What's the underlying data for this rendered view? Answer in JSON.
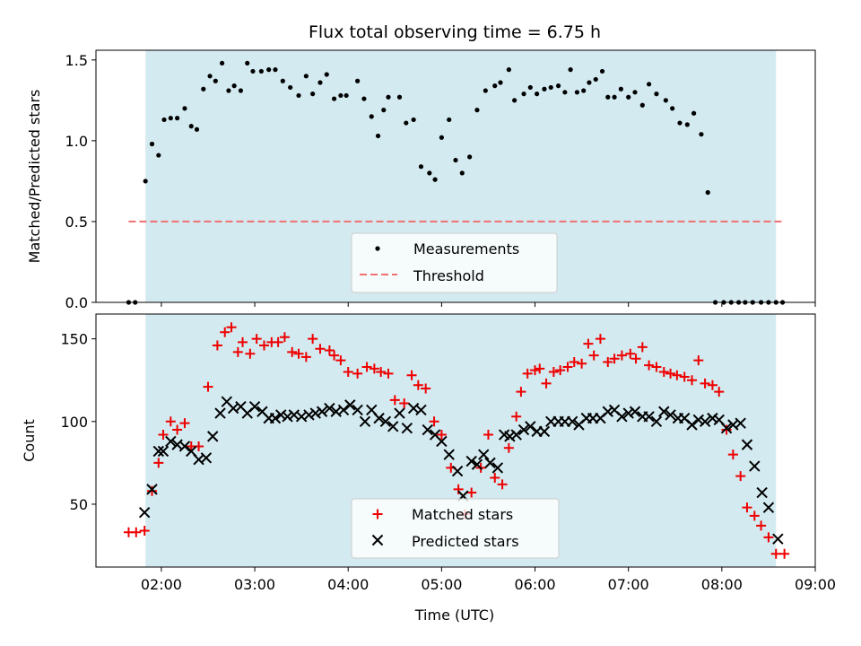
{
  "chart_data": {
    "title": "Flux total observing time = 6.75 h",
    "xlabel": "Time (UTC)",
    "x_tick_labels": [
      "02:00",
      "03:00",
      "04:00",
      "05:00",
      "06:00",
      "07:00",
      "08:00",
      "09:00"
    ],
    "x_ticks_hours": [
      2,
      3,
      4,
      5,
      6,
      7,
      8,
      9
    ],
    "xlim_hours": [
      1.3,
      9.0
    ],
    "observing_window_hours": [
      1.83,
      8.58
    ],
    "colors": {
      "window": "#d3eaf0",
      "measurements": "#000000",
      "threshold": "#f07070",
      "matched": "#ee0000",
      "predicted": "#000000"
    },
    "panels": [
      {
        "type": "scatter",
        "ylabel": "Matched/Predicted stars",
        "ylim": [
          0,
          1.56
        ],
        "y_ticks": [
          0.0,
          0.5,
          1.0,
          1.5
        ],
        "y_tick_labels": [
          "0.0",
          "0.5",
          "1.0",
          "1.5"
        ],
        "legend": {
          "placement": "lower-center",
          "entries": [
            "Measurements",
            "Threshold"
          ]
        },
        "threshold": {
          "name": "Threshold",
          "value": 0.5,
          "x_range": [
            1.65,
            8.67
          ]
        },
        "series": [
          {
            "name": "Measurements",
            "x": [
              1.65,
              1.72,
              1.83,
              1.9,
              1.97,
              2.03,
              2.1,
              2.17,
              2.25,
              2.32,
              2.38,
              2.45,
              2.52,
              2.58,
              2.65,
              2.72,
              2.78,
              2.85,
              2.92,
              2.98,
              3.07,
              3.15,
              3.22,
              3.3,
              3.38,
              3.47,
              3.55,
              3.62,
              3.7,
              3.77,
              3.85,
              3.92,
              3.98,
              4.1,
              4.17,
              4.25,
              4.32,
              4.38,
              4.43,
              4.55,
              4.62,
              4.7,
              4.78,
              4.87,
              4.93,
              5.0,
              5.08,
              5.15,
              5.22,
              5.3,
              5.38,
              5.47,
              5.57,
              5.63,
              5.72,
              5.78,
              5.88,
              5.95,
              6.02,
              6.1,
              6.17,
              6.25,
              6.32,
              6.38,
              6.45,
              6.52,
              6.58,
              6.65,
              6.72,
              6.78,
              6.85,
              6.92,
              7.0,
              7.07,
              7.15,
              7.22,
              7.3,
              7.4,
              7.47,
              7.55,
              7.63,
              7.7,
              7.78,
              7.85,
              7.93,
              8.02,
              8.1,
              8.18,
              8.25,
              8.33,
              8.42,
              8.5,
              8.58,
              8.65
            ],
            "y": [
              0.0,
              0.0,
              0.75,
              0.98,
              0.91,
              1.13,
              1.14,
              1.14,
              1.2,
              1.09,
              1.07,
              1.32,
              1.4,
              1.37,
              1.48,
              1.31,
              1.34,
              1.31,
              1.48,
              1.43,
              1.43,
              1.44,
              1.44,
              1.37,
              1.33,
              1.28,
              1.4,
              1.29,
              1.36,
              1.41,
              1.26,
              1.28,
              1.28,
              1.37,
              1.26,
              1.15,
              1.03,
              1.19,
              1.27,
              1.27,
              1.11,
              1.13,
              0.84,
              0.8,
              0.76,
              1.02,
              1.13,
              0.88,
              0.8,
              0.9,
              1.19,
              1.31,
              1.34,
              1.36,
              1.44,
              1.25,
              1.29,
              1.33,
              1.29,
              1.32,
              1.33,
              1.34,
              1.3,
              1.44,
              1.3,
              1.31,
              1.36,
              1.38,
              1.43,
              1.27,
              1.27,
              1.32,
              1.27,
              1.3,
              1.22,
              1.35,
              1.29,
              1.25,
              1.2,
              1.11,
              1.1,
              1.17,
              1.04,
              0.68,
              0.0,
              0.0,
              0.0,
              0.0,
              0.0,
              0.0,
              0.0,
              0.0,
              0.0,
              0.0
            ]
          }
        ]
      },
      {
        "type": "scatter",
        "ylabel": "Count",
        "ylim": [
          12,
          165
        ],
        "y_ticks": [
          50,
          100,
          150
        ],
        "y_tick_labels": [
          "50",
          "100",
          "150"
        ],
        "legend": {
          "placement": "lower-center",
          "entries": [
            "Matched stars",
            "Predicted stars"
          ]
        },
        "series": [
          {
            "name": "Matched stars",
            "x": [
              1.65,
              1.73,
              1.82,
              1.9,
              1.97,
              2.02,
              2.1,
              2.17,
              2.25,
              2.32,
              2.4,
              2.5,
              2.6,
              2.68,
              2.75,
              2.82,
              2.87,
              2.95,
              3.02,
              3.1,
              3.18,
              3.25,
              3.32,
              3.4,
              3.47,
              3.55,
              3.62,
              3.7,
              3.8,
              3.85,
              3.92,
              4.0,
              4.1,
              4.2,
              4.28,
              4.35,
              4.43,
              4.5,
              4.6,
              4.68,
              4.75,
              4.83,
              4.92,
              5.0,
              5.1,
              5.18,
              5.25,
              5.32,
              5.42,
              5.5,
              5.57,
              5.65,
              5.72,
              5.8,
              5.85,
              5.92,
              6.0,
              6.05,
              6.12,
              6.2,
              6.27,
              6.35,
              6.42,
              6.5,
              6.57,
              6.63,
              6.7,
              6.78,
              6.85,
              6.93,
              7.02,
              7.08,
              7.15,
              7.22,
              7.3,
              7.38,
              7.45,
              7.52,
              7.6,
              7.68,
              7.75,
              7.82,
              7.9,
              7.97,
              8.05,
              8.12,
              8.2,
              8.27,
              8.35,
              8.42,
              8.5,
              8.58,
              8.67
            ],
            "y": [
              33,
              33,
              34,
              58,
              75,
              92,
              100,
              95,
              99,
              85,
              85,
              121,
              146,
              154,
              157,
              142,
              148,
              141,
              150,
              146,
              148,
              148,
              151,
              142,
              141,
              139,
              150,
              144,
              143,
              140,
              137,
              130,
              129,
              133,
              132,
              130,
              129,
              113,
              111,
              128,
              122,
              120,
              100,
              92,
              72,
              59,
              44,
              57,
              72,
              92,
              66,
              62,
              84,
              103,
              118,
              129,
              131,
              132,
              123,
              130,
              131,
              133,
              136,
              135,
              147,
              140,
              150,
              136,
              138,
              140,
              141,
              138,
              145,
              134,
              133,
              130,
              129,
              128,
              127,
              125,
              137,
              123,
              122,
              118,
              95,
              80,
              67,
              48,
              43,
              37,
              30,
              20,
              20
            ],
            "note": ""
          },
          {
            "name": "Predicted stars",
            "x": [
              1.82,
              1.9,
              1.97,
              2.02,
              2.1,
              2.17,
              2.25,
              2.32,
              2.4,
              2.48,
              2.55,
              2.63,
              2.7,
              2.77,
              2.85,
              2.92,
              3.0,
              3.08,
              3.15,
              3.22,
              3.28,
              3.35,
              3.42,
              3.5,
              3.58,
              3.65,
              3.72,
              3.8,
              3.87,
              3.95,
              4.02,
              4.1,
              4.18,
              4.25,
              4.33,
              4.4,
              4.48,
              4.55,
              4.63,
              4.7,
              4.78,
              4.85,
              4.93,
              5.0,
              5.08,
              5.17,
              5.23,
              5.32,
              5.38,
              5.45,
              5.52,
              5.6,
              5.67,
              5.73,
              5.8,
              5.88,
              5.95,
              6.02,
              6.1,
              6.17,
              6.25,
              6.32,
              6.4,
              6.47,
              6.55,
              6.62,
              6.7,
              6.78,
              6.85,
              6.93,
              7.0,
              7.07,
              7.15,
              7.22,
              7.3,
              7.38,
              7.45,
              7.53,
              7.6,
              7.68,
              7.75,
              7.82,
              7.9,
              7.97,
              8.05,
              8.12,
              8.2,
              8.27,
              8.35,
              8.43,
              8.5,
              8.6
            ],
            "y": [
              45,
              59,
              82,
              82,
              88,
              86,
              85,
              82,
              77,
              78,
              91,
              105,
              112,
              108,
              109,
              105,
              109,
              106,
              102,
              102,
              104,
              103,
              104,
              103,
              104,
              105,
              106,
              108,
              106,
              107,
              110,
              107,
              100,
              107,
              102,
              100,
              97,
              105,
              96,
              108,
              107,
              95,
              92,
              88,
              80,
              70,
              55,
              76,
              74,
              80,
              75,
              72,
              92,
              91,
              92,
              95,
              97,
              94,
              94,
              100,
              100,
              100,
              100,
              98,
              102,
              102,
              102,
              106,
              107,
              103,
              105,
              106,
              103,
              103,
              100,
              106,
              104,
              102,
              102,
              98,
              101,
              100,
              102,
              101,
              96,
              98,
              99,
              86,
              73,
              57,
              48,
              29
            ]
          }
        ]
      }
    ]
  }
}
